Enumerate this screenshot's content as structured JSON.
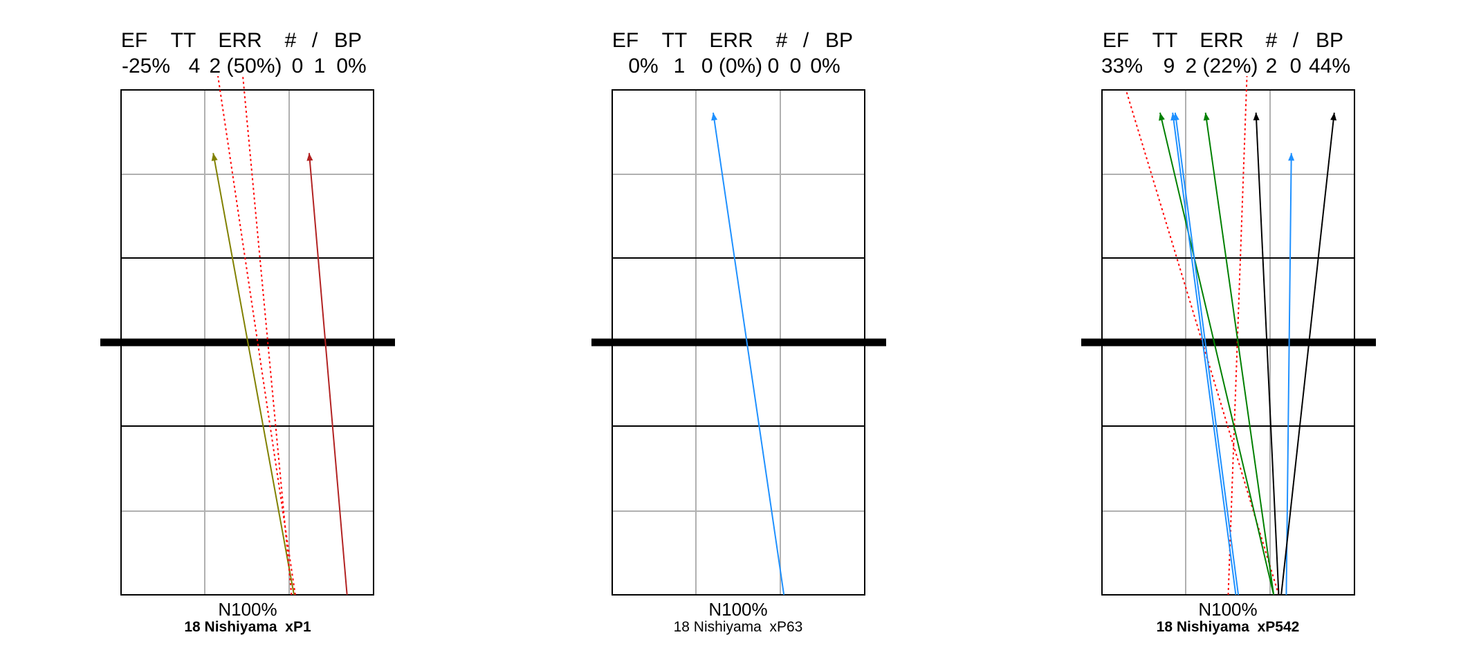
{
  "chart_data": [
    {
      "type": "line",
      "header_labels": [
        "EF",
        "TT",
        "ERR",
        "#",
        "/",
        "BP"
      ],
      "header_values": [
        "-25%",
        "4",
        "2 (50%)",
        "0",
        "1",
        "0%"
      ],
      "bottom_label": "N100%",
      "subtitle": "18 Nishiyama  xP1",
      "subtitle_bold": true,
      "lines": [
        {
          "color": "#808000",
          "style": "solid",
          "arrow": true,
          "from": [
            0.685,
            0.0
          ],
          "to": [
            0.365,
            0.875
          ]
        },
        {
          "color": "#b22222",
          "style": "solid",
          "arrow": true,
          "from": [
            0.895,
            0.0
          ],
          "to": [
            0.745,
            0.875
          ]
        },
        {
          "color": "#ff0000",
          "style": "dotted",
          "arrow": false,
          "from": [
            0.69,
            0.0
          ],
          "to": [
            0.38,
            1.04
          ]
        },
        {
          "color": "#ff0000",
          "style": "dotted",
          "arrow": false,
          "from": [
            0.675,
            0.0
          ],
          "to": [
            0.48,
            1.04
          ]
        }
      ]
    },
    {
      "type": "line",
      "header_labels": [
        "EF",
        "TT",
        "ERR",
        "#",
        "/",
        "BP"
      ],
      "header_values": [
        "0%",
        "1",
        "0 (0%)",
        "0",
        "0",
        "0%"
      ],
      "bottom_label": "N100%",
      "subtitle": "18 Nishiyama  xP63",
      "subtitle_bold": false,
      "lines": [
        {
          "color": "#1e90ff",
          "style": "solid",
          "arrow": true,
          "from": [
            0.68,
            0.0
          ],
          "to": [
            0.4,
            0.955
          ]
        }
      ]
    },
    {
      "type": "line",
      "header_labels": [
        "EF",
        "TT",
        "ERR",
        "#",
        "/",
        "BP"
      ],
      "header_values": [
        "33%",
        "9",
        "2 (22%)",
        "2",
        "0",
        "44%"
      ],
      "bottom_label": "N100%",
      "subtitle": "18 Nishiyama  xP542",
      "subtitle_bold": true,
      "lines": [
        {
          "color": "#ff0000",
          "style": "dotted",
          "arrow": false,
          "from": [
            0.7,
            0.0
          ],
          "to": [
            0.095,
            1.0
          ]
        },
        {
          "color": "#ff0000",
          "style": "dotted",
          "arrow": false,
          "from": [
            0.5,
            0.0
          ],
          "to": [
            0.575,
            1.04
          ]
        },
        {
          "color": "#008000",
          "style": "solid",
          "arrow": true,
          "from": [
            0.68,
            0.0
          ],
          "to": [
            0.23,
            0.955
          ]
        },
        {
          "color": "#008000",
          "style": "solid",
          "arrow": true,
          "from": [
            0.68,
            0.0
          ],
          "to": [
            0.41,
            0.955
          ]
        },
        {
          "color": "#1e90ff",
          "style": "solid",
          "arrow": true,
          "from": [
            0.53,
            0.0
          ],
          "to": [
            0.28,
            0.955
          ]
        },
        {
          "color": "#1e90ff",
          "style": "solid",
          "arrow": true,
          "from": [
            0.54,
            0.0
          ],
          "to": [
            0.29,
            0.955
          ]
        },
        {
          "color": "#1e90ff",
          "style": "solid",
          "arrow": true,
          "from": [
            0.73,
            0.0
          ],
          "to": [
            0.75,
            0.875
          ]
        },
        {
          "color": "#000000",
          "style": "solid",
          "arrow": true,
          "from": [
            0.7,
            0.0
          ],
          "to": [
            0.61,
            0.955
          ]
        },
        {
          "color": "#000000",
          "style": "solid",
          "arrow": true,
          "from": [
            0.71,
            0.0
          ],
          "to": [
            0.92,
            0.955
          ]
        }
      ]
    }
  ]
}
